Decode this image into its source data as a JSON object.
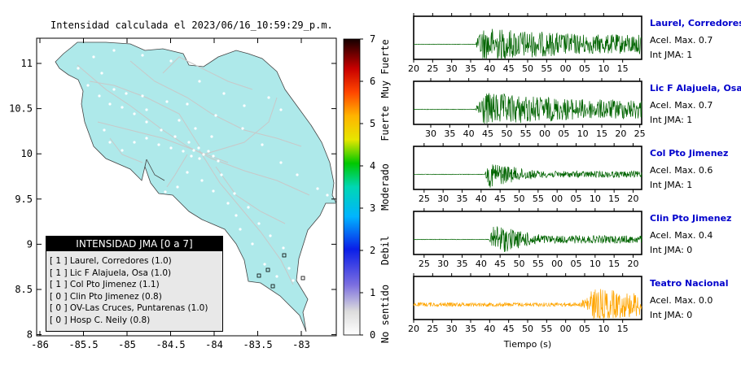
{
  "map": {
    "title": "Intensidad calculada el 2023/06/16_10:59:29_p.m.",
    "x_ticks": [
      "-86",
      "-85.5",
      "-85",
      "-84.5",
      "-84",
      "-83.5",
      "-83"
    ],
    "y_ticks": [
      "11",
      "10.5",
      "10",
      "9.5",
      "9",
      "8.5",
      "8"
    ],
    "land_color": "#aee9ea",
    "legend": {
      "title": "INTENSIDAD JMA [0 a 7]",
      "rows": [
        "[ 1 ]  Laurel, Corredores (1.0)",
        "[ 1 ]  Lic F Alajuela, Osa (1.0)",
        "[ 1 ]  Col Pto Jimenez (1.1)",
        "[ 0 ]  Clin Pto Jimenez (0.8)",
        "[ 0 ]  OV-Las Cruces, Puntarenas (1.0)",
        "[ 0 ]  Hosp C. Neily (0.8)"
      ]
    }
  },
  "colorbar": {
    "ticks": [
      "0",
      "1",
      "2",
      "3",
      "4",
      "5",
      "6",
      "7"
    ],
    "labels": [
      "No sentido",
      "Debil",
      "Moderado",
      "Fuerte",
      "Muy Fuerte"
    ]
  },
  "traces": {
    "x_label": "Tiempo (s)",
    "panels": [
      {
        "station": "Laurel, Corredores",
        "accel": "Acel. Max. 0.7",
        "int": "Int JMA: 1",
        "color": "#006400",
        "onset": 0.27,
        "ticks": [
          "20",
          "25",
          "30",
          "35",
          "40",
          "45",
          "50",
          "55",
          "00",
          "05",
          "10",
          "15"
        ]
      },
      {
        "station": "Lic F Alajuela, Osa",
        "accel": "Acel. Max. 0.7",
        "int": "Int JMA: 1",
        "color": "#006400",
        "onset": 0.27,
        "ticks": [
          "30",
          "35",
          "40",
          "45",
          "50",
          "55",
          "00",
          "05",
          "10",
          "15",
          "20",
          "25"
        ]
      },
      {
        "station": "Col Pto Jimenez",
        "accel": "Acel. Max. 0.6",
        "int": "Int JMA: 1",
        "color": "#006400",
        "onset": 0.31,
        "ticks": [
          "25",
          "30",
          "35",
          "40",
          "45",
          "50",
          "55",
          "00",
          "05",
          "10",
          "15",
          "20"
        ]
      },
      {
        "station": "Clin Pto Jimenez",
        "accel": "Acel. Max. 0.4",
        "int": "Int JMA: 0",
        "color": "#006400",
        "onset": 0.33,
        "ticks": [
          "25",
          "30",
          "35",
          "40",
          "45",
          "50",
          "55",
          "00",
          "05",
          "10",
          "15",
          "20"
        ]
      },
      {
        "station": "Teatro Nacional",
        "accel": "Acel. Max. 0.0",
        "int": "Int JMA: 0",
        "color": "#ffa500",
        "onset": 0.74,
        "ticks": [
          "20",
          "25",
          "30",
          "35",
          "40",
          "45",
          "50",
          "55",
          "00",
          "05",
          "10",
          "15"
        ]
      }
    ]
  }
}
